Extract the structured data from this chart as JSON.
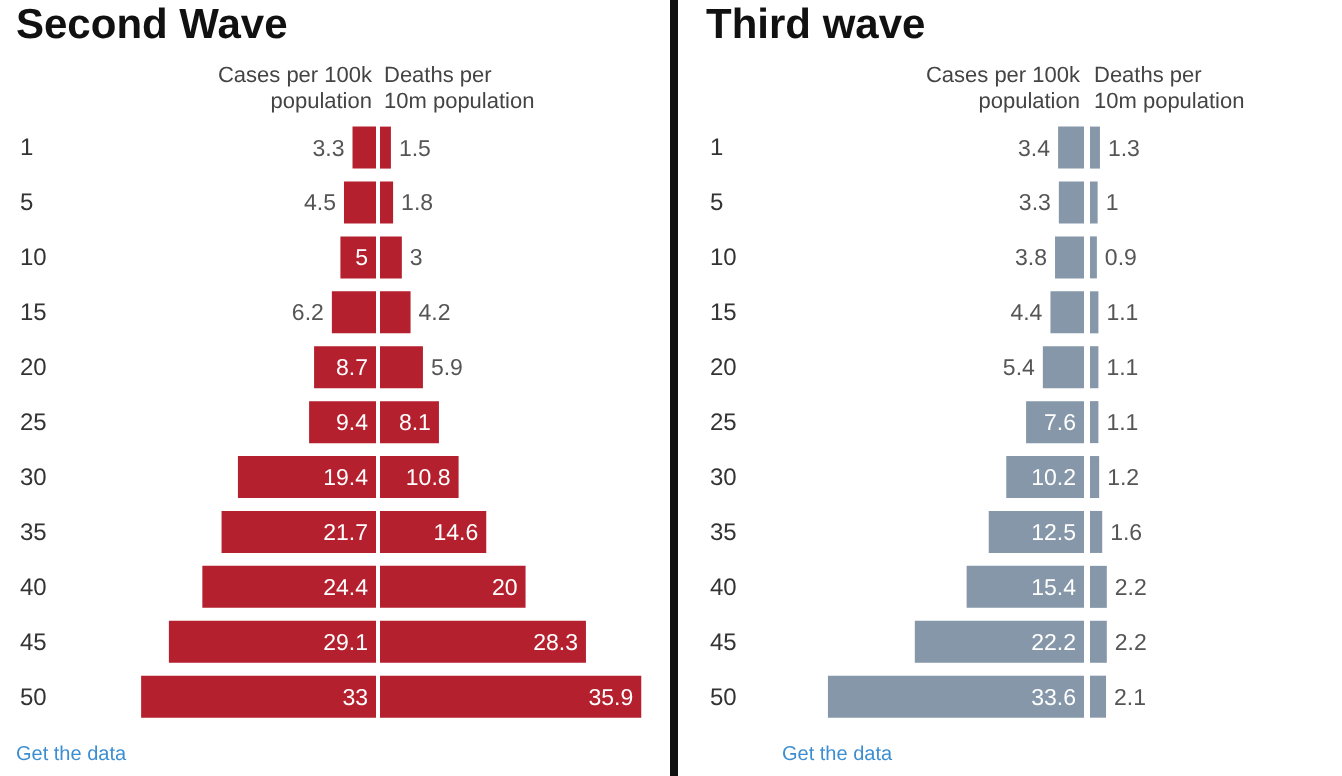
{
  "chart_data": [
    {
      "type": "bar",
      "orientation": "horizontal",
      "title": "Second Wave",
      "subtitle": "Cases per 100k population",
      "categories": [
        "1",
        "5",
        "10",
        "15",
        "20",
        "25",
        "30",
        "35",
        "40",
        "45",
        "50"
      ],
      "values": [
        3.3,
        4.5,
        5,
        6.2,
        8.7,
        9.4,
        19.4,
        21.7,
        24.4,
        29.1,
        33
      ],
      "color": "#b5202e",
      "tick_labels": "y",
      "data_labels": true,
      "annotations": [
        "Get the data"
      ]
    },
    {
      "type": "bar",
      "orientation": "horizontal",
      "subtitle": "Deaths per 10m population",
      "categories": [
        "1",
        "5",
        "10",
        "15",
        "20",
        "25",
        "30",
        "35",
        "40",
        "45",
        "50"
      ],
      "values": [
        1.5,
        1.8,
        3,
        4.2,
        5.9,
        8.1,
        10.8,
        14.6,
        20,
        28.3,
        35.9
      ],
      "color": "#b5202e",
      "tick_labels": false,
      "data_labels": true
    },
    {
      "type": "bar",
      "orientation": "horizontal",
      "title": "Third wave",
      "subtitle": "Cases per 100k population",
      "categories": [
        "1",
        "5",
        "10",
        "15",
        "20",
        "25",
        "30",
        "35",
        "40",
        "45",
        "50"
      ],
      "values": [
        3.4,
        3.3,
        3.8,
        4.4,
        5.4,
        7.6,
        10.2,
        12.5,
        15.4,
        22.2,
        33.6
      ],
      "color": "#8597a8",
      "tick_labels": "y",
      "data_labels": true,
      "annotations": [
        "Get the data"
      ]
    },
    {
      "type": "bar",
      "orientation": "horizontal",
      "subtitle": "Deaths per 10m population",
      "categories": [
        "1",
        "5",
        "10",
        "15",
        "20",
        "25",
        "30",
        "35",
        "40",
        "45",
        "50"
      ],
      "values": [
        1.3,
        1,
        0.9,
        1.1,
        1.1,
        1.1,
        1.2,
        1.6,
        2.2,
        2.2,
        2.1
      ],
      "color": "#8597a8",
      "tick_labels": false,
      "data_labels": true
    }
  ]
}
